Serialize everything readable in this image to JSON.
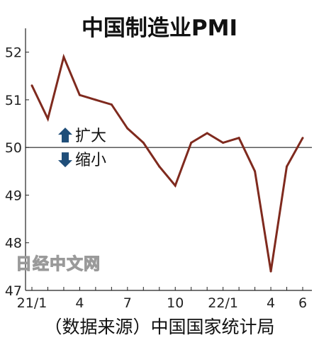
{
  "chart_data": {
    "type": "line",
    "title": "中国制造业PMI",
    "source": "（数据来源）中国国家统计局",
    "watermark": "日经中文网",
    "xlabel": "",
    "ylabel": "",
    "x": [
      "21/1",
      "21/2",
      "21/3",
      "21/4",
      "21/5",
      "21/6",
      "21/7",
      "21/8",
      "21/9",
      "21/10",
      "21/11",
      "21/12",
      "22/1",
      "22/2",
      "22/3",
      "22/4",
      "22/5",
      "22/6"
    ],
    "x_tick_labels": [
      {
        "index": 0,
        "label": "21/1"
      },
      {
        "index": 3,
        "label": "4"
      },
      {
        "index": 6,
        "label": "7"
      },
      {
        "index": 9,
        "label": "10"
      },
      {
        "index": 12,
        "label": "22/1"
      },
      {
        "index": 15,
        "label": "4"
      },
      {
        "index": 17,
        "label": "6"
      }
    ],
    "series": [
      {
        "values": [
          51.3,
          50.6,
          51.9,
          51.1,
          51.0,
          50.9,
          50.4,
          50.1,
          49.6,
          49.2,
          50.1,
          50.3,
          50.1,
          50.2,
          49.5,
          47.4,
          49.6,
          50.2
        ]
      }
    ],
    "ylim": [
      47,
      52.5
    ],
    "y_ticks": [
      47,
      48,
      49,
      50,
      51,
      52
    ],
    "reference_line": 50,
    "legend": [
      {
        "arrow": "up",
        "label": "扩大"
      },
      {
        "arrow": "down",
        "label": "缩小"
      }
    ],
    "grid": false,
    "colors": {
      "line": "#7f2a1e",
      "arrow": "#1f4e79",
      "axis": "#222222"
    }
  }
}
